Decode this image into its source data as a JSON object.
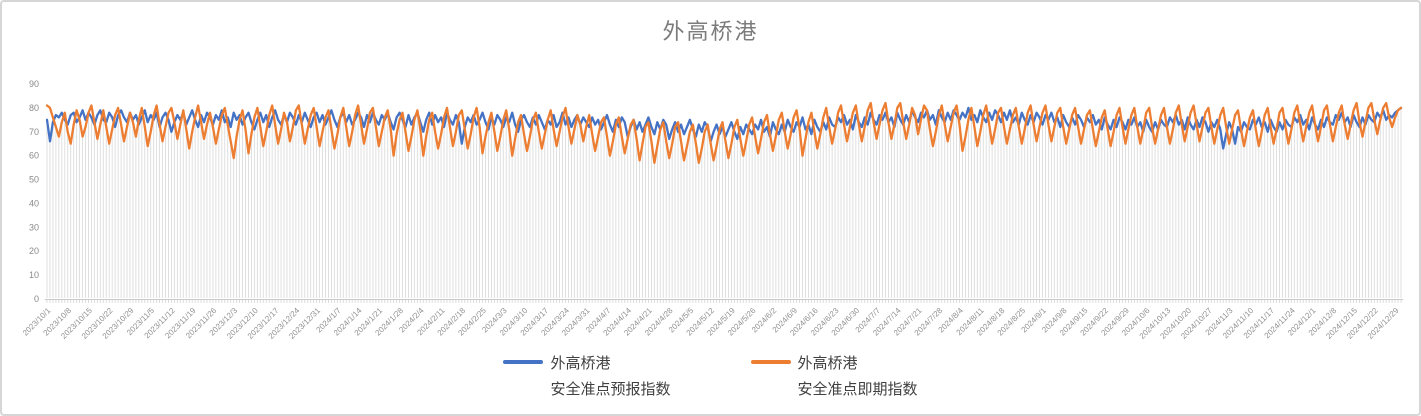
{
  "chart": {
    "title": "外高桥港",
    "title_color": "#7c7c7c"
  },
  "legend": {
    "entries": [
      {
        "line1": "外高桥港",
        "line2": "安全准点预报指数",
        "color": "#4472C4"
      },
      {
        "line1": "外高桥港",
        "line2": "安全准点即期指数",
        "color": "#ED7D31"
      }
    ]
  },
  "chart_data": {
    "type": "line",
    "title": "外高桥港",
    "ylim": [
      0,
      90
    ],
    "y_ticks": [
      0,
      10,
      20,
      30,
      40,
      50,
      60,
      70,
      80,
      90
    ],
    "gridlines": "vertical drop line from each daily point down to the category axis, no horizontal gridlines",
    "legend_position": "bottom",
    "x_points_per_tick": 7,
    "x_label_rotation": -45,
    "x_tick_labels": [
      "2023/10/1",
      "2023/10/8",
      "2023/10/15",
      "2023/10/22",
      "2023/10/29",
      "2023/11/5",
      "2023/11/12",
      "2023/11/19",
      "2023/11/26",
      "2023/12/3",
      "2023/12/10",
      "2023/12/17",
      "2023/12/24",
      "2023/12/31",
      "2024/1/7",
      "2024/1/14",
      "2024/1/21",
      "2024/1/28",
      "2024/2/4",
      "2024/2/11",
      "2024/2/18",
      "2024/2/25",
      "2024/3/3",
      "2024/3/10",
      "2024/3/17",
      "2024/3/24",
      "2024/3/31",
      "2024/4/7",
      "2024/4/14",
      "2024/4/21",
      "2024/4/28",
      "2024/5/5",
      "2024/5/12",
      "2024/5/19",
      "2024/5/26",
      "2024/6/2",
      "2024/6/9",
      "2024/6/16",
      "2024/6/23",
      "2024/6/30",
      "2024/7/7",
      "2024/7/14",
      "2024/7/21",
      "2024/7/28",
      "2024/8/4",
      "2024/8/11",
      "2024/8/18",
      "2024/8/25",
      "2024/9/1",
      "2024/9/8",
      "2024/9/15",
      "2024/9/22",
      "2024/9/29",
      "2024/10/6",
      "2024/10/13",
      "2024/10/20",
      "2024/10/27",
      "2024/11/3",
      "2024/11/10",
      "2024/11/17",
      "2024/11/24",
      "2024/12/1",
      "2024/12/8",
      "2024/12/15",
      "2024/12/22",
      "2024/12/29"
    ],
    "series": [
      {
        "name": "外高桥港 安全准点预报指数",
        "color": "#4472C4",
        "values": [
          75,
          66,
          74,
          77,
          76,
          78,
          75,
          73,
          77,
          78,
          74,
          76,
          79,
          75,
          78,
          76,
          73,
          77,
          79,
          75,
          74,
          78,
          76,
          72,
          77,
          79,
          76,
          74,
          78,
          75,
          77,
          73,
          76,
          79,
          74,
          77,
          75,
          78,
          72,
          76,
          78,
          75,
          70,
          74,
          77,
          75,
          78,
          73,
          76,
          79,
          75,
          72,
          77,
          74,
          78,
          76,
          73,
          77,
          75,
          79,
          74,
          76,
          72,
          78,
          75,
          77,
          73,
          76,
          78,
          74,
          71,
          75,
          78,
          74,
          77,
          72,
          76,
          79,
          75,
          73,
          77,
          74,
          78,
          76,
          73,
          77,
          74,
          78,
          75,
          72,
          76,
          78,
          74,
          77,
          73,
          76,
          79,
          75,
          72,
          76,
          78,
          74,
          77,
          73,
          75,
          78,
          76,
          72,
          77,
          74,
          78,
          75,
          73,
          77,
          75,
          78,
          74,
          71,
          76,
          78,
          75,
          72,
          77,
          73,
          76,
          78,
          74,
          70,
          75,
          78,
          73,
          77,
          74,
          76,
          72,
          78,
          75,
          73,
          77,
          74,
          65,
          72,
          76,
          74,
          77,
          73,
          75,
          78,
          74,
          71,
          76,
          73,
          77,
          75,
          72,
          76,
          74,
          78,
          73,
          70,
          75,
          77,
          74,
          72,
          76,
          73,
          77,
          74,
          71,
          75,
          73,
          77,
          72,
          74,
          78,
          73,
          76,
          72,
          75,
          77,
          73,
          76,
          74,
          72,
          76,
          73,
          75,
          71,
          74,
          77,
          73,
          70,
          75,
          72,
          76,
          74,
          68,
          72,
          75,
          71,
          74,
          70,
          73,
          76,
          72,
          69,
          74,
          71,
          75,
          73,
          67,
          71,
          74,
          70,
          73,
          69,
          72,
          75,
          71,
          68,
          73,
          70,
          74,
          72,
          66,
          70,
          73,
          69,
          72,
          68,
          71,
          74,
          70,
          67,
          72,
          69,
          73,
          71,
          69,
          73,
          71,
          75,
          70,
          72,
          68,
          74,
          71,
          69,
          73,
          70,
          75,
          72,
          70,
          74,
          72,
          76,
          71,
          73,
          69,
          75,
          72,
          70,
          74,
          71,
          76,
          73,
          72,
          76,
          74,
          77,
          73,
          75,
          71,
          77,
          74,
          72,
          76,
          73,
          78,
          75,
          73,
          77,
          75,
          78,
          74,
          76,
          72,
          78,
          75,
          73,
          77,
          74,
          79,
          76,
          74,
          78,
          76,
          79,
          75,
          77,
          73,
          79,
          76,
          74,
          78,
          75,
          79,
          77,
          75,
          78,
          76,
          80,
          75,
          77,
          74,
          79,
          76,
          74,
          78,
          75,
          79,
          77,
          74,
          78,
          75,
          79,
          74,
          76,
          73,
          78,
          75,
          73,
          77,
          74,
          78,
          76,
          73,
          77,
          75,
          78,
          74,
          76,
          72,
          77,
          74,
          72,
          76,
          73,
          77,
          75,
          72,
          76,
          74,
          77,
          73,
          75,
          71,
          76,
          73,
          71,
          75,
          72,
          76,
          74,
          71,
          75,
          73,
          76,
          72,
          74,
          70,
          75,
          72,
          70,
          74,
          71,
          75,
          73,
          72,
          76,
          74,
          77,
          73,
          75,
          71,
          76,
          73,
          71,
          75,
          72,
          76,
          74,
          70,
          74,
          72,
          75,
          71,
          63,
          69,
          74,
          71,
          65,
          72,
          70,
          74,
          72,
          71,
          75,
          73,
          76,
          72,
          74,
          70,
          75,
          72,
          70,
          74,
          71,
          75,
          73,
          72,
          76,
          74,
          77,
          73,
          75,
          71,
          76,
          73,
          71,
          75,
          72,
          76,
          74,
          73,
          77,
          75,
          78,
          74,
          76,
          72,
          77,
          74,
          72,
          76,
          73,
          77,
          75,
          74,
          78,
          76,
          79,
          75,
          77,
          76,
          78,
          79,
          80
        ]
      },
      {
        "name": "外高桥港 安全准点即期指数",
        "color": "#ED7D31",
        "values": [
          81,
          80,
          76,
          72,
          68,
          74,
          78,
          70,
          65,
          73,
          79,
          75,
          68,
          72,
          78,
          81,
          74,
          67,
          73,
          79,
          72,
          65,
          71,
          77,
          80,
          73,
          66,
          72,
          78,
          74,
          68,
          75,
          80,
          72,
          64,
          70,
          77,
          81,
          73,
          66,
          72,
          78,
          80,
          74,
          67,
          73,
          79,
          71,
          63,
          70,
          76,
          81,
          74,
          67,
          73,
          78,
          72,
          65,
          71,
          77,
          80,
          73,
          66,
          59,
          68,
          75,
          79,
          71,
          61,
          69,
          76,
          80,
          72,
          64,
          70,
          77,
          81,
          73,
          65,
          71,
          78,
          74,
          66,
          72,
          79,
          81,
          73,
          65,
          71,
          77,
          80,
          72,
          64,
          70,
          76,
          79,
          71,
          63,
          69,
          76,
          80,
          72,
          64,
          70,
          77,
          81,
          73,
          65,
          71,
          78,
          80,
          72,
          64,
          70,
          76,
          79,
          71,
          60,
          69,
          75,
          78,
          70,
          62,
          68,
          75,
          79,
          71,
          60,
          68,
          75,
          78,
          70,
          63,
          69,
          76,
          80,
          72,
          64,
          70,
          77,
          79,
          71,
          63,
          69,
          76,
          80,
          72,
          61,
          68,
          74,
          78,
          70,
          62,
          68,
          75,
          79,
          71,
          60,
          67,
          74,
          77,
          69,
          62,
          68,
          75,
          78,
          70,
          63,
          69,
          75,
          79,
          71,
          64,
          70,
          76,
          80,
          72,
          65,
          71,
          77,
          73,
          66,
          72,
          77,
          69,
          62,
          68,
          74,
          76,
          68,
          60,
          66,
          73,
          76,
          68,
          61,
          67,
          73,
          75,
          67,
          58,
          65,
          72,
          74,
          66,
          57,
          64,
          71,
          74,
          66,
          59,
          65,
          72,
          74,
          66,
          58,
          64,
          70,
          73,
          65,
          57,
          63,
          70,
          73,
          65,
          58,
          64,
          71,
          74,
          66,
          59,
          65,
          72,
          75,
          67,
          60,
          66,
          73,
          76,
          68,
          61,
          67,
          74,
          77,
          69,
          62,
          68,
          75,
          78,
          70,
          63,
          69,
          76,
          79,
          71,
          60,
          67,
          74,
          78,
          70,
          63,
          69,
          76,
          80,
          72,
          65,
          71,
          78,
          81,
          73,
          66,
          72,
          78,
          81,
          73,
          66,
          72,
          79,
          82,
          74,
          67,
          73,
          79,
          82,
          74,
          67,
          73,
          80,
          82,
          74,
          67,
          73,
          80,
          77,
          69,
          75,
          81,
          79,
          71,
          64,
          70,
          77,
          81,
          73,
          66,
          72,
          78,
          81,
          73,
          62,
          68,
          75,
          80,
          72,
          64,
          70,
          77,
          81,
          73,
          65,
          71,
          78,
          80,
          72,
          65,
          71,
          77,
          80,
          72,
          65,
          71,
          78,
          81,
          73,
          66,
          72,
          78,
          81,
          73,
          66,
          72,
          78,
          80,
          72,
          65,
          71,
          77,
          80,
          72,
          65,
          71,
          77,
          79,
          71,
          64,
          70,
          76,
          79,
          71,
          64,
          70,
          77,
          80,
          72,
          65,
          71,
          77,
          80,
          72,
          65,
          71,
          78,
          80,
          72,
          65,
          71,
          77,
          80,
          72,
          65,
          71,
          78,
          81,
          73,
          66,
          72,
          78,
          81,
          73,
          66,
          72,
          78,
          80,
          72,
          65,
          71,
          77,
          80,
          72,
          65,
          71,
          77,
          79,
          71,
          64,
          70,
          76,
          79,
          71,
          64,
          70,
          77,
          80,
          72,
          65,
          71,
          78,
          80,
          72,
          65,
          71,
          78,
          81,
          73,
          66,
          72,
          78,
          81,
          73,
          66,
          72,
          79,
          81,
          73,
          66,
          72,
          78,
          81,
          73,
          67,
          73,
          79,
          82,
          74,
          68,
          74,
          80,
          82,
          75,
          69,
          75,
          80,
          82,
          76,
          72,
          76,
          79,
          80
        ]
      }
    ]
  }
}
